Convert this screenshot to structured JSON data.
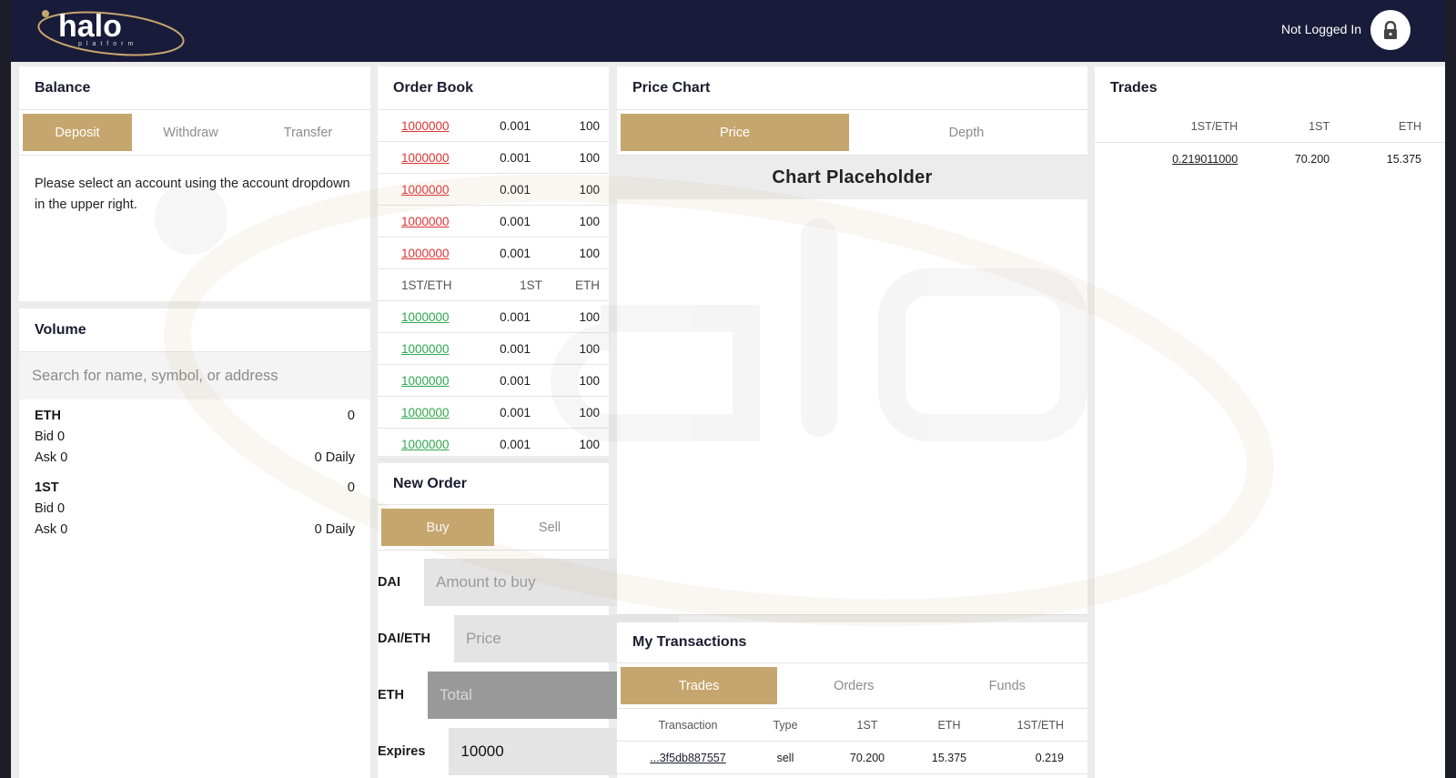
{
  "header": {
    "logo_text": "halo",
    "logo_sub": "platform",
    "login_status": "Not Logged In"
  },
  "balance": {
    "title": "Balance",
    "tabs": [
      "Deposit",
      "Withdraw",
      "Transfer"
    ],
    "message": "Please select an account using the account dropdown in the upper right."
  },
  "volume": {
    "title": "Volume",
    "search_placeholder": "Search for name, symbol, or address",
    "tokens": [
      {
        "symbol": "ETH",
        "value": "0",
        "bid": "Bid 0",
        "ask": "Ask 0",
        "daily": "0 Daily"
      },
      {
        "symbol": "1ST",
        "value": "0",
        "bid": "Bid 0",
        "ask": "Ask 0",
        "daily": "0 Daily"
      }
    ]
  },
  "order_book": {
    "title": "Order Book",
    "sells": [
      {
        "price": "1000000",
        "amount": "0.001",
        "total": "100"
      },
      {
        "price": "1000000",
        "amount": "0.001",
        "total": "100"
      },
      {
        "price": "1000000",
        "amount": "0.001",
        "total": "100"
      },
      {
        "price": "1000000",
        "amount": "0.001",
        "total": "100"
      },
      {
        "price": "1000000",
        "amount": "0.001",
        "total": "100"
      }
    ],
    "headers": [
      "1ST/ETH",
      "1ST",
      "ETH"
    ],
    "buys": [
      {
        "price": "1000000",
        "amount": "0.001",
        "total": "100"
      },
      {
        "price": "1000000",
        "amount": "0.001",
        "total": "100"
      },
      {
        "price": "1000000",
        "amount": "0.001",
        "total": "100"
      },
      {
        "price": "1000000",
        "amount": "0.001",
        "total": "100"
      },
      {
        "price": "1000000",
        "amount": "0.001",
        "total": "100"
      }
    ]
  },
  "new_order": {
    "title": "New Order",
    "tabs": [
      "Buy",
      "Sell"
    ],
    "fields": [
      {
        "label": "DAI",
        "placeholder": "Amount to buy",
        "value": ""
      },
      {
        "label": "DAI/ETH",
        "placeholder": "Price",
        "value": ""
      },
      {
        "label": "ETH",
        "placeholder": "Total",
        "value": ""
      },
      {
        "label": "Expires",
        "placeholder": "",
        "value": "10000"
      }
    ]
  },
  "price_chart": {
    "title": "Price Chart",
    "tabs": [
      "Price",
      "Depth"
    ],
    "placeholder": "Chart Placeholder"
  },
  "my_transactions": {
    "title": "My Transactions",
    "tabs": [
      "Trades",
      "Orders",
      "Funds"
    ],
    "headers": [
      "Transaction",
      "Type",
      "1ST",
      "ETH",
      "1ST/ETH"
    ],
    "rows": [
      {
        "tx": "...3f5db887557",
        "type": "sell",
        "a": "70.200",
        "b": "15.375",
        "c": "0.219"
      }
    ]
  },
  "trades": {
    "title": "Trades",
    "headers": [
      "1ST/ETH",
      "1ST",
      "ETH"
    ],
    "rows": [
      {
        "price": "0.219011000",
        "a": "70.200",
        "b": "15.375"
      }
    ]
  },
  "colors": {
    "accent": "#c6a66f",
    "topbar": "#191b3a",
    "sell": "#e0332f",
    "buy": "#2ea84a"
  }
}
